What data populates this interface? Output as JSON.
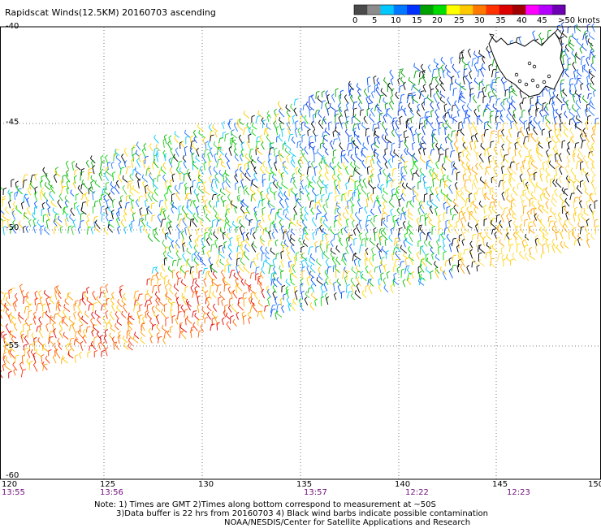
{
  "title": "Rapidscat Winds(12.5KM) 20160703 ascending",
  "legend": {
    "swatches": [
      "#4a4a4a",
      "#8c8c8c",
      "#00c8ff",
      "#0078ff",
      "#0032ff",
      "#00a000",
      "#00dc00",
      "#ffff00",
      "#ffc800",
      "#ff7800",
      "#ff3200",
      "#dc0000",
      "#a00000",
      "#ff00ff",
      "#b400ff",
      "#6e00b4"
    ],
    "labels": [
      "0",
      "5",
      "10",
      "15",
      "20",
      "25",
      "30",
      "35",
      "40",
      "45",
      ">50 knots"
    ]
  },
  "lat_labels": [
    "-40",
    "-45",
    "-50",
    "-55",
    "-60"
  ],
  "lon_labels": [
    "120",
    "125",
    "130",
    "135",
    "140",
    "145",
    "150"
  ],
  "time_labels": [
    "13:55",
    "13:56",
    "13:57",
    "12:22",
    "12:23"
  ],
  "notes": [
    "Note: 1) Times are GMT 2)Times along bottom correspond to measurement at ~50S",
    "3)Data buffer is 22 hrs from 20160703 4) Black wind barbs indicate possible contamination",
    "NOAA/NESDIS/Center for Satellite Applications and Research"
  ]
}
